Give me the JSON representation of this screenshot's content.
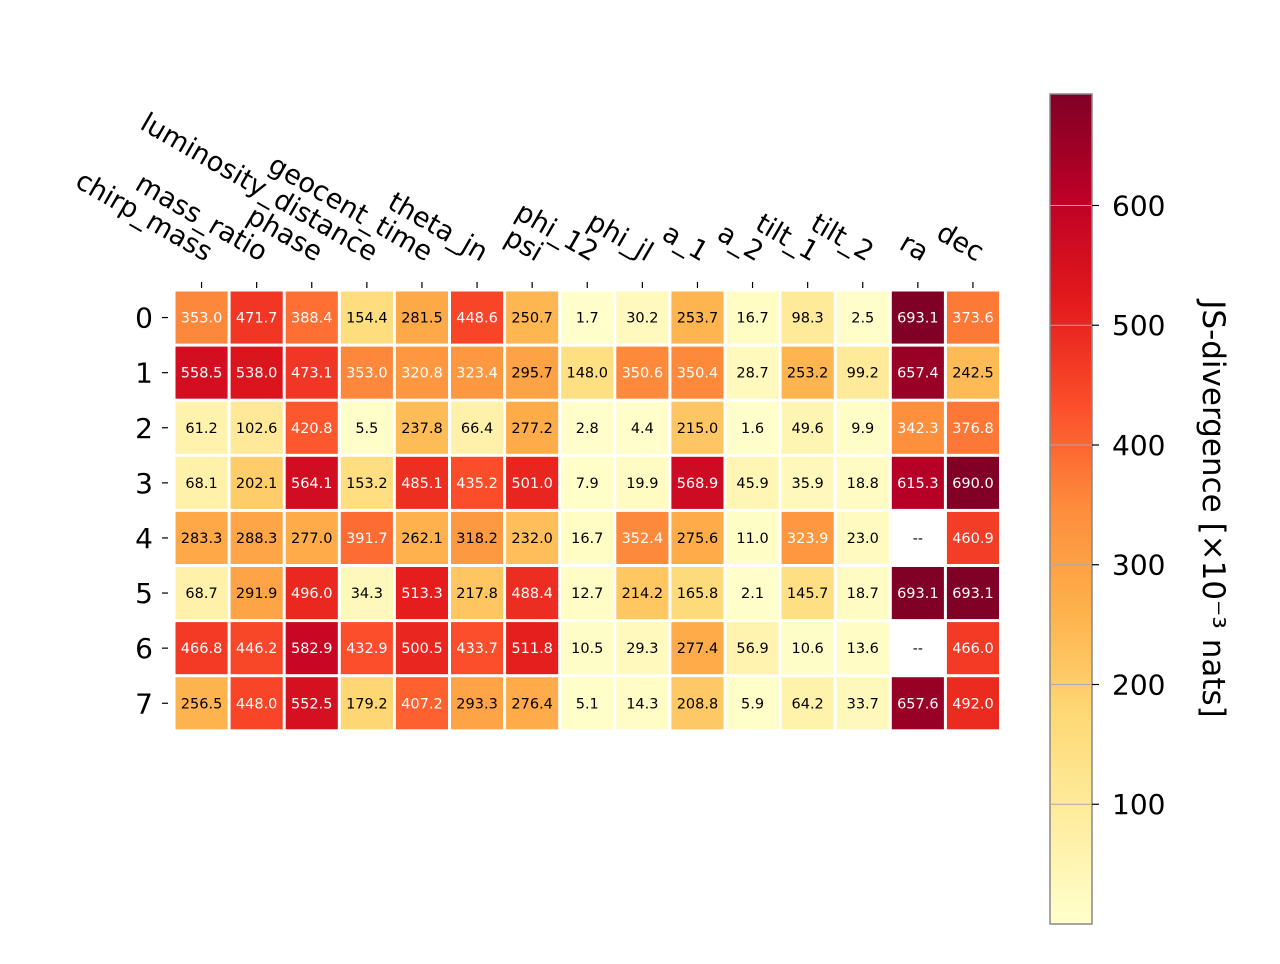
{
  "chart_data": {
    "type": "heatmap",
    "columns": [
      "chirp_mass",
      "mass_ratio",
      "phase",
      "luminosity_distance",
      "geocent_time",
      "theta_jn",
      "psi",
      "phi_12",
      "phi_jl",
      "a_1",
      "a_2",
      "tilt_1",
      "tilt_2",
      "ra",
      "dec"
    ],
    "rows": [
      "0",
      "1",
      "2",
      "3",
      "4",
      "5",
      "6",
      "7"
    ],
    "values": [
      [
        353.0,
        471.7,
        388.4,
        154.4,
        281.5,
        448.6,
        250.7,
        1.7,
        30.2,
        253.7,
        16.7,
        98.3,
        2.5,
        693.1,
        373.6
      ],
      [
        558.5,
        538.0,
        473.1,
        353.0,
        320.8,
        323.4,
        295.7,
        148.0,
        350.6,
        350.4,
        28.7,
        253.2,
        99.2,
        657.4,
        242.5
      ],
      [
        61.2,
        102.6,
        420.8,
        5.5,
        237.8,
        66.4,
        277.2,
        2.8,
        4.4,
        215.0,
        1.6,
        49.6,
        9.9,
        342.3,
        376.8
      ],
      [
        68.1,
        202.1,
        564.1,
        153.2,
        485.1,
        435.2,
        501.0,
        7.9,
        19.9,
        568.9,
        45.9,
        35.9,
        18.8,
        615.3,
        690.0
      ],
      [
        283.3,
        288.3,
        277.0,
        391.7,
        262.1,
        318.2,
        232.0,
        16.7,
        352.4,
        275.6,
        11.0,
        323.9,
        23.0,
        null,
        460.9
      ],
      [
        68.7,
        291.9,
        496.0,
        34.3,
        513.3,
        217.8,
        488.4,
        12.7,
        214.2,
        165.8,
        2.1,
        145.7,
        18.7,
        693.1,
        693.1
      ],
      [
        466.8,
        446.2,
        582.9,
        432.9,
        500.5,
        433.7,
        511.8,
        10.5,
        29.3,
        277.4,
        56.9,
        10.6,
        13.6,
        null,
        466.0
      ],
      [
        256.5,
        448.0,
        552.5,
        179.2,
        407.2,
        293.3,
        276.4,
        5.1,
        14.3,
        208.8,
        5.9,
        64.2,
        33.7,
        657.6,
        492.0
      ]
    ],
    "missing_label": "--",
    "colorbar": {
      "label": "JS-divergence [×10⁻³ nats]",
      "ticks": [
        "100",
        "200",
        "300",
        "400",
        "500",
        "600"
      ],
      "tick_values": [
        100,
        200,
        300,
        400,
        500,
        600
      ],
      "range": [
        0,
        693.1
      ],
      "colormap": "YlOrRd",
      "colormap_stops": [
        "#ffffcc",
        "#ffeda0",
        "#fed976",
        "#feb24c",
        "#fd8d3c",
        "#fc4e2a",
        "#e31a1c",
        "#bd0026",
        "#800026"
      ]
    }
  }
}
